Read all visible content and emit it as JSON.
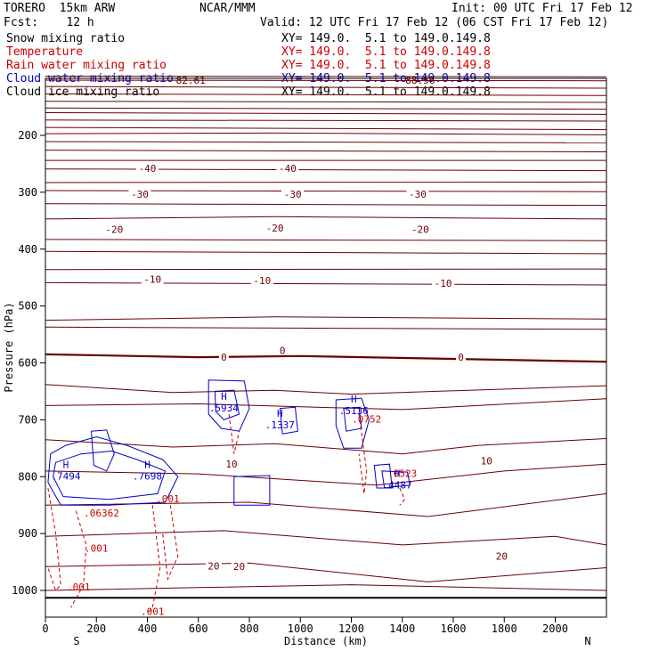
{
  "header": {
    "model": "TORERO  15km ARW",
    "center": "NCAR/MMM",
    "init": "Init: 00 UTC Fri 17 Feb 12",
    "fcst": "Fcst:    12 h",
    "valid": "Valid: 12 UTC Fri 17 Feb 12 (06 CST Fri 17 Feb 12)"
  },
  "legend": [
    {
      "name": "Snow mixing ratio",
      "xy": "XY= 149.0.  5.1 to 149.0.149.8",
      "color": "#000000"
    },
    {
      "name": "Temperature",
      "xy": "XY= 149.0.  5.1 to 149.0.149.8",
      "color": "#cc0000"
    },
    {
      "name": "Rain water mixing ratio",
      "xy": "XY= 149.0.  5.1 to 149.0.149.8",
      "color": "#cc0000"
    },
    {
      "name": "Cloud water mixing ratio",
      "xy": "XY= 149.0.  5.1 to 149.0.149.8",
      "color": "#0000cc"
    },
    {
      "name": "Cloud ice mixing ratio",
      "xy": "XY= 149.0.  5.1 to 149.0.149.8",
      "color": "#000000"
    }
  ],
  "chart_data": {
    "type": "contour-cross-section",
    "xlabel": "Distance (km)",
    "ylabel": "Pressure (hPa)",
    "xlim": [
      0,
      2200
    ],
    "ylim": [
      1050,
      100
    ],
    "x_ticks": [
      0,
      200,
      400,
      600,
      800,
      1000,
      1200,
      1400,
      1600,
      1800,
      2000
    ],
    "y_ticks": [
      200,
      300,
      400,
      500,
      600,
      700,
      800,
      900,
      1000
    ],
    "left_end": "S",
    "right_end": "N",
    "temperature_labels": [
      {
        "value": "-40",
        "x": 400,
        "p": 258
      },
      {
        "value": "-40",
        "x": 950,
        "p": 258
      },
      {
        "value": "-30",
        "x": 370,
        "p": 303
      },
      {
        "value": "-30",
        "x": 970,
        "p": 303
      },
      {
        "value": "-30",
        "x": 1460,
        "p": 303
      },
      {
        "value": "-20",
        "x": 270,
        "p": 365
      },
      {
        "value": "-20",
        "x": 900,
        "p": 363
      },
      {
        "value": "-20",
        "x": 1470,
        "p": 365
      },
      {
        "value": "-10",
        "x": 420,
        "p": 453
      },
      {
        "value": "-10",
        "x": 850,
        "p": 455
      },
      {
        "value": "-10",
        "x": 1560,
        "p": 460
      },
      {
        "value": "0",
        "x": 700,
        "p": 590
      },
      {
        "value": "0",
        "x": 930,
        "p": 578
      },
      {
        "value": "0",
        "x": 1630,
        "p": 590
      },
      {
        "value": "10",
        "x": 730,
        "p": 778
      },
      {
        "value": "10",
        "x": 1730,
        "p": 772
      },
      {
        "value": "20",
        "x": 660,
        "p": 957
      },
      {
        "value": "20",
        "x": 760,
        "p": 958
      },
      {
        "value": "20",
        "x": 1790,
        "p": 940
      }
    ],
    "cloud_water_maxima": [
      {
        "label": "H",
        "value": ".7494",
        "x": 80,
        "p": 785
      },
      {
        "label": "H",
        "value": ".7698",
        "x": 400,
        "p": 785
      },
      {
        "label": "H",
        "value": ".5934",
        "x": 700,
        "p": 665
      },
      {
        "label": "H",
        "value": ".1337",
        "x": 920,
        "p": 695
      },
      {
        "label": "H",
        "value": ".5136",
        "x": 1210,
        "p": 670
      },
      {
        "label": "H",
        "value": ".4487",
        "x": 1380,
        "p": 800
      }
    ],
    "rain_water_labels": [
      {
        "value": ".001",
        "x": 480,
        "p": 845
      },
      {
        "value": ".06362",
        "x": 220,
        "p": 870
      },
      {
        "value": ".001",
        "x": 200,
        "p": 932
      },
      {
        "value": ".001",
        "x": 130,
        "p": 1000
      },
      {
        "value": ".001",
        "x": 420,
        "p": 1043
      },
      {
        "value": ".0752",
        "x": 1260,
        "p": 705
      },
      {
        "value": ".0523",
        "x": 1400,
        "p": 800
      }
    ],
    "snow_max": {
      "value": "82.61",
      "x": 570,
      "p": 103
    },
    "snow_max_right": {
      "value": "88.56",
      "x": 1470,
      "p": 103
    }
  }
}
